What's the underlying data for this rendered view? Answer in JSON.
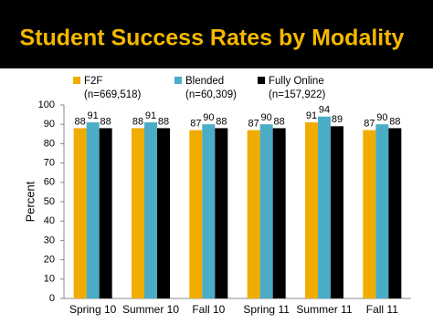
{
  "chart_data": {
    "type": "bar",
    "title": "Student Success Rates by Modality",
    "categories": [
      "Spring 10",
      "Summer 10",
      "Fall 10",
      "Spring 11",
      "Summer 11",
      "Fall 11"
    ],
    "series": [
      {
        "name": "F2F",
        "note": "(n=669,518)",
        "color": "#f0ac00",
        "values": [
          88,
          88,
          87,
          87,
          91,
          87
        ]
      },
      {
        "name": "Blended",
        "note": "(n=60,309)",
        "color": "#4bacc6",
        "values": [
          91,
          91,
          90,
          90,
          94,
          90
        ]
      },
      {
        "name": "Fully Online",
        "note": "(n=157,922)",
        "color": "#000000",
        "values": [
          88,
          88,
          88,
          88,
          89,
          88
        ]
      }
    ],
    "ylabel": "Percent",
    "ylim": [
      0,
      100
    ],
    "yticks": [
      0,
      10,
      20,
      30,
      40,
      50,
      60,
      70,
      80,
      90,
      100
    ],
    "grid": false
  }
}
